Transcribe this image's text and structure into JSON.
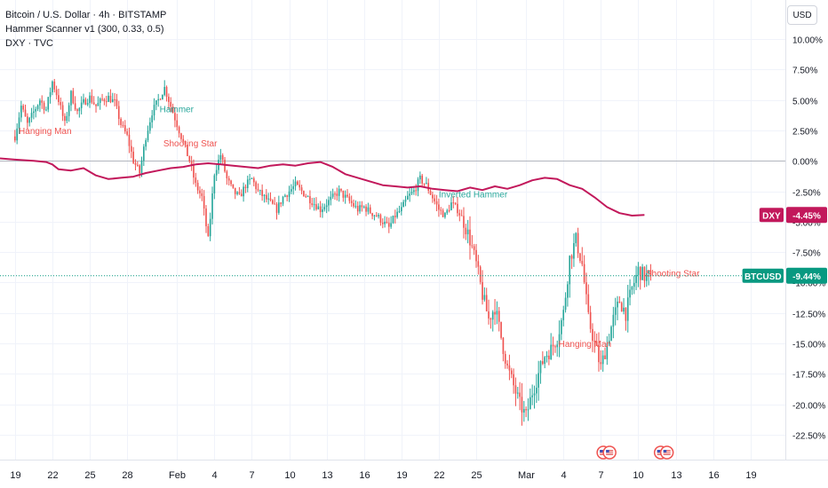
{
  "header": {
    "symbol_line": "Bitcoin / U.S. Dollar · 4h · BITSTAMP",
    "indicator_line": "Hammer Scanner v1 (300, 0.33, 0.5)",
    "compare_line": "DXY · TVC"
  },
  "currency_button": "USD",
  "colors": {
    "up": "#26a69a",
    "down": "#ef5350",
    "dxy_line": "#c2185b",
    "btc_badge": "#089981",
    "grid": "#f0f3fa",
    "zero_line": "#b2b5be",
    "axis_text": "#131722"
  },
  "price_badges": {
    "dxy": {
      "label": "DXY",
      "value": "-4.45%",
      "percent": -4.45
    },
    "btc": {
      "label": "BTCUSD",
      "value": "-9.44%",
      "percent": -9.44
    }
  },
  "chart_data": {
    "type": "candlestick",
    "interval": "4h",
    "y_axis_ticks": [
      "10.00%",
      "7.50%",
      "5.00%",
      "2.50%",
      "0.00%",
      "-2.50%",
      "-5.00%",
      "-7.50%",
      "-10.00%",
      "-12.50%",
      "-15.00%",
      "-17.50%",
      "-20.00%",
      "-22.50%"
    ],
    "y_tick_values": [
      10,
      7.5,
      5,
      2.5,
      0,
      -2.5,
      -5,
      -7.5,
      -10,
      -12.5,
      -15,
      -17.5,
      -20,
      -22.5
    ],
    "ylim": [
      -24.5,
      11.5
    ],
    "x_axis_ticks": [
      "19",
      "22",
      "25",
      "28",
      "Feb",
      "4",
      "7",
      "10",
      "13",
      "16",
      "19",
      "22",
      "25",
      "Mar",
      "4",
      "7",
      "10",
      "13",
      "16",
      "19"
    ],
    "x_tick_days": [
      0,
      3,
      6,
      9,
      13,
      16,
      19,
      22,
      25,
      28,
      31,
      34,
      37,
      41,
      44,
      47,
      50,
      53,
      56,
      59
    ],
    "x_range_days": [
      -1.2,
      61.8
    ],
    "btc_close_path": [
      [
        0,
        2.0
      ],
      [
        0.5,
        4.5
      ],
      [
        1,
        3.0
      ],
      [
        1.5,
        4.0
      ],
      [
        2,
        5.0
      ],
      [
        2.5,
        4.2
      ],
      [
        3,
        6.5
      ],
      [
        3.5,
        5.0
      ],
      [
        4,
        3.0
      ],
      [
        4.5,
        5.5
      ],
      [
        5,
        4.0
      ],
      [
        5.5,
        4.8
      ],
      [
        6,
        5.2
      ],
      [
        6.5,
        4.5
      ],
      [
        7,
        5.0
      ],
      [
        7.5,
        5.2
      ],
      [
        8,
        4.8
      ],
      [
        8.5,
        3.0
      ],
      [
        9,
        2.0
      ],
      [
        9.5,
        0.0
      ],
      [
        10,
        -1.0
      ],
      [
        10.5,
        2.0
      ],
      [
        11,
        4.0
      ],
      [
        11.5,
        5.0
      ],
      [
        12,
        6.0
      ],
      [
        12.5,
        4.5
      ],
      [
        13,
        3.0
      ],
      [
        13.5,
        1.5
      ],
      [
        14,
        0.0
      ],
      [
        14.5,
        -2.0
      ],
      [
        15,
        -3.0
      ],
      [
        15.5,
        -6.5
      ],
      [
        16,
        -1.0
      ],
      [
        16.5,
        0.5
      ],
      [
        17,
        -1.5
      ],
      [
        17.5,
        -2.5
      ],
      [
        18,
        -3.0
      ],
      [
        18.5,
        -2.0
      ],
      [
        19,
        -1.5
      ],
      [
        19.5,
        -2.5
      ],
      [
        20,
        -3.0
      ],
      [
        20.5,
        -3.5
      ],
      [
        21,
        -4.0
      ],
      [
        21.5,
        -3.0
      ],
      [
        22,
        -2.5
      ],
      [
        22.5,
        -2.0
      ],
      [
        23,
        -2.5
      ],
      [
        23.5,
        -3.0
      ],
      [
        24,
        -3.5
      ],
      [
        24.5,
        -4.0
      ],
      [
        25,
        -3.5
      ],
      [
        25.5,
        -3.0
      ],
      [
        26,
        -2.5
      ],
      [
        26.5,
        -3.0
      ],
      [
        27,
        -3.5
      ],
      [
        27.5,
        -4.0
      ],
      [
        28,
        -3.8
      ],
      [
        28.5,
        -4.2
      ],
      [
        29,
        -4.5
      ],
      [
        29.5,
        -5.0
      ],
      [
        30,
        -5.5
      ],
      [
        30.5,
        -4.5
      ],
      [
        31,
        -4.0
      ],
      [
        31.5,
        -3.0
      ],
      [
        32,
        -2.5
      ],
      [
        32.5,
        -1.5
      ],
      [
        33,
        -2.0
      ],
      [
        33.5,
        -3.0
      ],
      [
        34,
        -4.0
      ],
      [
        34.5,
        -4.5
      ],
      [
        35,
        -3.5
      ],
      [
        35.5,
        -4.0
      ],
      [
        36,
        -5.0
      ],
      [
        36.5,
        -6.5
      ],
      [
        37,
        -8.5
      ],
      [
        37.5,
        -11.0
      ],
      [
        38,
        -13.0
      ],
      [
        38.5,
        -12.0
      ],
      [
        39,
        -14.5
      ],
      [
        39.5,
        -17.0
      ],
      [
        40,
        -18.5
      ],
      [
        40.5,
        -20.0
      ],
      [
        41,
        -21.0
      ],
      [
        41.5,
        -19.0
      ],
      [
        42,
        -17.5
      ],
      [
        42.5,
        -16.0
      ],
      [
        43,
        -15.5
      ],
      [
        43.5,
        -14.5
      ],
      [
        44,
        -12.5
      ],
      [
        44.5,
        -8.0
      ],
      [
        45,
        -6.5
      ],
      [
        45.5,
        -8.5
      ],
      [
        46,
        -13.0
      ],
      [
        46.5,
        -15.0
      ],
      [
        47,
        -17.0
      ],
      [
        47.5,
        -15.0
      ],
      [
        48,
        -13.0
      ],
      [
        48.5,
        -11.5
      ],
      [
        49,
        -12.5
      ],
      [
        49.5,
        -10.5
      ],
      [
        50,
        -9.0
      ],
      [
        50.5,
        -9.5
      ],
      [
        51,
        -9.44
      ]
    ],
    "dxy_series": [
      [
        -1.2,
        0.2
      ],
      [
        0,
        0.1
      ],
      [
        1.5,
        0.0
      ],
      [
        2.5,
        -0.1
      ],
      [
        3,
        -0.3
      ],
      [
        3.5,
        -0.7
      ],
      [
        4.5,
        -0.8
      ],
      [
        5.5,
        -0.6
      ],
      [
        6.5,
        -1.2
      ],
      [
        7.5,
        -1.5
      ],
      [
        8.5,
        -1.4
      ],
      [
        9.5,
        -1.3
      ],
      [
        10.5,
        -1.0
      ],
      [
        11.5,
        -0.8
      ],
      [
        12.5,
        -0.6
      ],
      [
        13.5,
        -0.5
      ],
      [
        14.5,
        -0.3
      ],
      [
        15.5,
        -0.2
      ],
      [
        16.5,
        -0.3
      ],
      [
        17.5,
        -0.4
      ],
      [
        18.5,
        -0.5
      ],
      [
        19.5,
        -0.6
      ],
      [
        20.5,
        -0.4
      ],
      [
        21.5,
        -0.3
      ],
      [
        22.5,
        -0.4
      ],
      [
        23.5,
        -0.2
      ],
      [
        24.5,
        -0.1
      ],
      [
        25.5,
        -0.5
      ],
      [
        26.5,
        -1.1
      ],
      [
        27.5,
        -1.4
      ],
      [
        28.5,
        -1.7
      ],
      [
        29.5,
        -2.0
      ],
      [
        30.5,
        -2.1
      ],
      [
        31.5,
        -2.2
      ],
      [
        32.5,
        -2.1
      ],
      [
        33.5,
        -2.3
      ],
      [
        34.5,
        -2.4
      ],
      [
        35.5,
        -2.5
      ],
      [
        36.5,
        -2.2
      ],
      [
        37.5,
        -2.4
      ],
      [
        38.5,
        -2.1
      ],
      [
        39.5,
        -2.3
      ],
      [
        40.5,
        -2.0
      ],
      [
        41.5,
        -1.6
      ],
      [
        42.5,
        -1.4
      ],
      [
        43.5,
        -1.5
      ],
      [
        44.5,
        -2.0
      ],
      [
        45.5,
        -2.3
      ],
      [
        46.5,
        -3.0
      ],
      [
        47.5,
        -3.8
      ],
      [
        48.5,
        -4.3
      ],
      [
        49.5,
        -4.5
      ],
      [
        50.5,
        -4.45
      ]
    ],
    "annotations": [
      {
        "text": "Hanging Man",
        "day": 0.3,
        "value": 2.2,
        "kind": "bearish"
      },
      {
        "text": "Hammer",
        "day": 11.6,
        "value": 4.0,
        "kind": "bullish"
      },
      {
        "text": "Shooting Star",
        "day": 11.9,
        "value": 1.2,
        "kind": "bearish"
      },
      {
        "text": "Inverted Hammer",
        "day": 34.0,
        "value": -3.0,
        "kind": "bullish"
      },
      {
        "text": "Hanging Man",
        "day": 43.6,
        "value": -15.3,
        "kind": "bearish"
      },
      {
        "text": "Shooting Star",
        "day": 50.6,
        "value": -9.5,
        "kind": "bearish"
      }
    ],
    "event_markers_days": [
      47.2,
      47.7,
      51.8,
      52.3
    ]
  }
}
